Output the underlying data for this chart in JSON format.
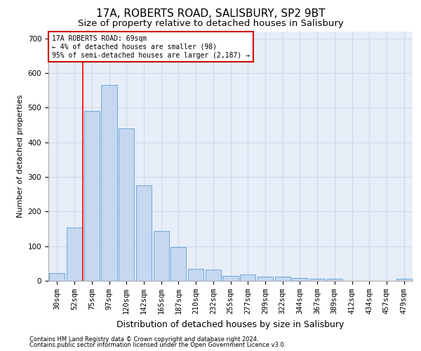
{
  "title": "17A, ROBERTS ROAD, SALISBURY, SP2 9BT",
  "subtitle": "Size of property relative to detached houses in Salisbury",
  "xlabel": "Distribution of detached houses by size in Salisbury",
  "ylabel": "Number of detached properties",
  "footnote1": "Contains HM Land Registry data © Crown copyright and database right 2024.",
  "footnote2": "Contains public sector information licensed under the Open Government Licence v3.0.",
  "bar_labels": [
    "30sqm",
    "52sqm",
    "75sqm",
    "97sqm",
    "120sqm",
    "142sqm",
    "165sqm",
    "187sqm",
    "210sqm",
    "232sqm",
    "255sqm",
    "277sqm",
    "299sqm",
    "322sqm",
    "344sqm",
    "367sqm",
    "389sqm",
    "412sqm",
    "434sqm",
    "457sqm",
    "479sqm"
  ],
  "bar_values": [
    22,
    155,
    490,
    565,
    440,
    275,
    145,
    97,
    35,
    32,
    15,
    18,
    12,
    12,
    8,
    6,
    6,
    0,
    0,
    0,
    6
  ],
  "bar_color": "#c5d8f0",
  "bar_edge_color": "#5a9fd4",
  "annotation_text_line1": "17A ROBERTS ROAD: 69sqm",
  "annotation_text_line2": "← 4% of detached houses are smaller (98)",
  "annotation_text_line3": "95% of semi-detached houses are larger (2,187) →",
  "annotation_box_color": "#ffffff",
  "annotation_box_edge": "#cc0000",
  "red_line_bin": 1.5,
  "ylim": [
    0,
    720
  ],
  "yticks": [
    0,
    100,
    200,
    300,
    400,
    500,
    600,
    700
  ],
  "grid_color": "#d0d8e8",
  "bg_color": "#e8eef8",
  "title_fontsize": 11,
  "subtitle_fontsize": 9.5,
  "xlabel_fontsize": 9,
  "ylabel_fontsize": 8,
  "tick_fontsize": 7.5,
  "ann_fontsize": 7,
  "footnote_fontsize": 6
}
